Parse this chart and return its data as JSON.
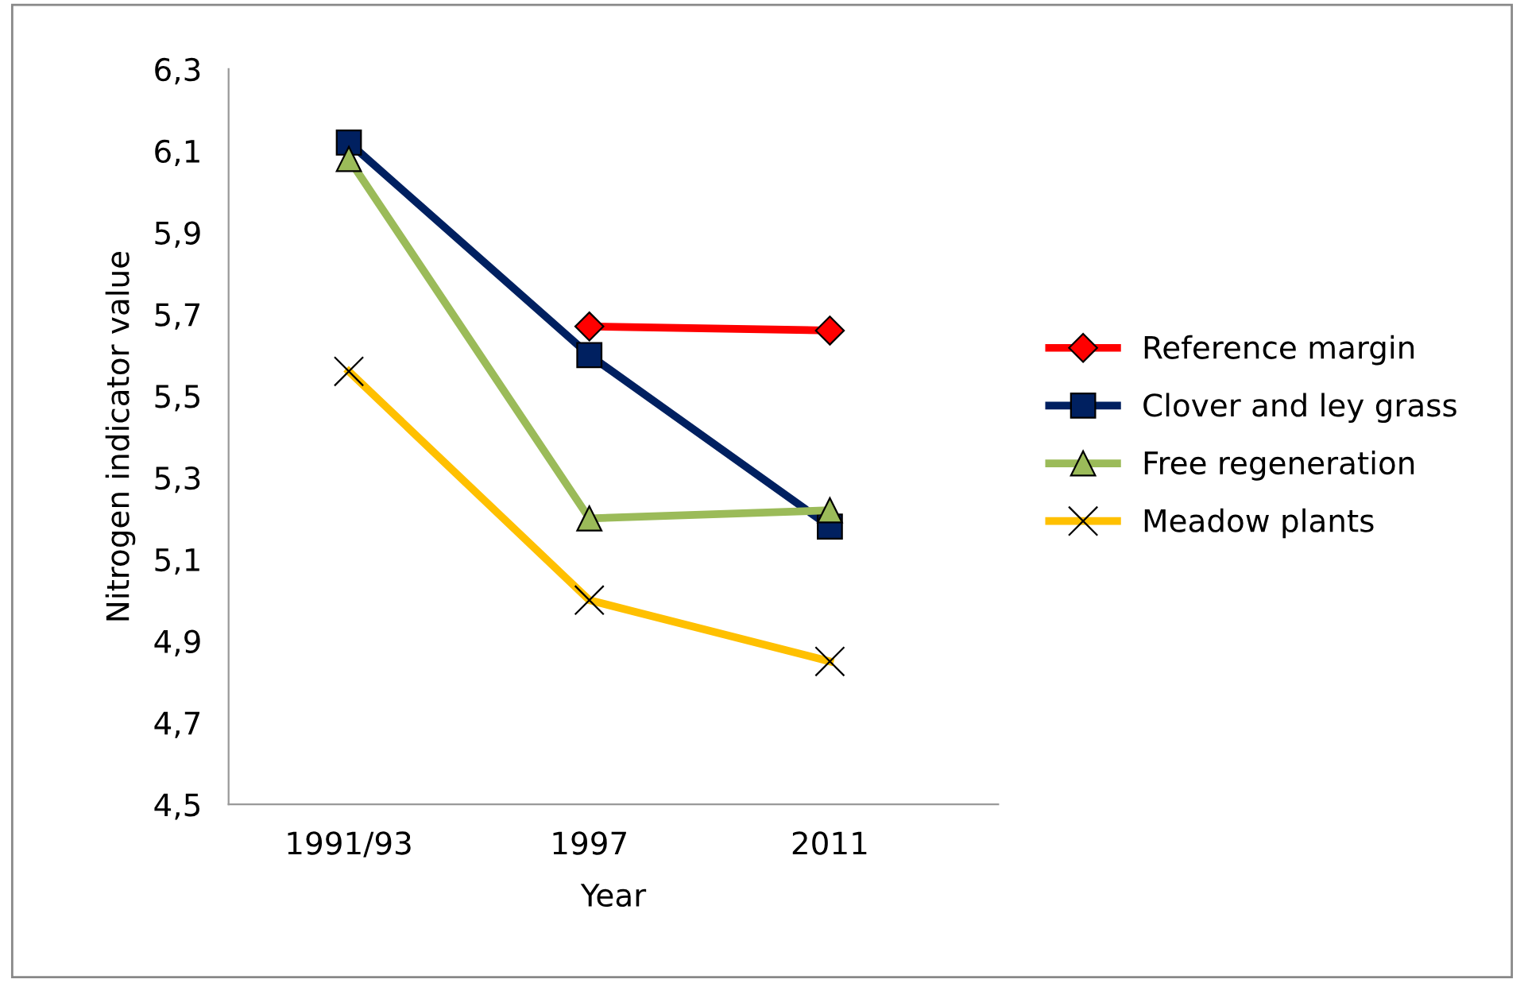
{
  "chart_data": {
    "type": "line",
    "xlabel": "Year",
    "ylabel": "Nitrogen indicator value",
    "categories": [
      "1991/93",
      "1997",
      "2011"
    ],
    "series": [
      {
        "name": "Reference margin",
        "color": "#ff0000",
        "marker": "diamond",
        "values": [
          null,
          5.67,
          5.66
        ]
      },
      {
        "name": "Clover and ley grass",
        "color": "#002060",
        "marker": "square",
        "values": [
          6.12,
          5.6,
          5.18
        ]
      },
      {
        "name": "Free regeneration",
        "color": "#9bbb59",
        "marker": "triangle",
        "values": [
          6.08,
          5.2,
          5.22
        ]
      },
      {
        "name": "Meadow plants",
        "color": "#ffc000",
        "marker": "cross",
        "values": [
          5.56,
          5.0,
          4.85
        ]
      }
    ],
    "ylim": [
      4.5,
      6.3
    ],
    "yticks": [
      {
        "value": 4.5,
        "label": "4,5"
      },
      {
        "value": 4.7,
        "label": "4,7"
      },
      {
        "value": 4.9,
        "label": "4,9"
      },
      {
        "value": 5.1,
        "label": "5,1"
      },
      {
        "value": 5.3,
        "label": "5,3"
      },
      {
        "value": 5.5,
        "label": "5,5"
      },
      {
        "value": 5.7,
        "label": "5,7"
      },
      {
        "value": 5.9,
        "label": "5,9"
      },
      {
        "value": 6.1,
        "label": "6,1"
      },
      {
        "value": 6.3,
        "label": "6,3"
      }
    ],
    "grid": false,
    "legend": "right",
    "line_style": "solid"
  }
}
